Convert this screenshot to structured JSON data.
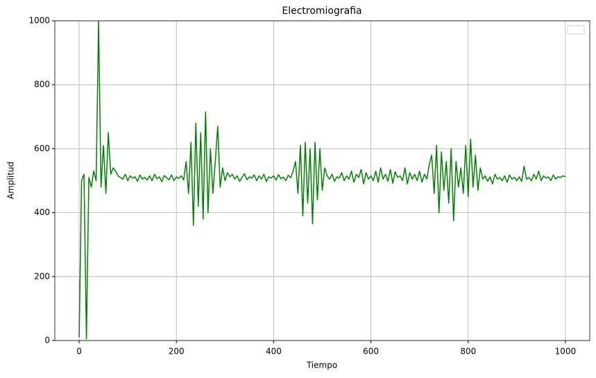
{
  "chart_data": {
    "type": "line",
    "title": "Electromiografia",
    "x_label": "Tiempo",
    "y_label": "Amplitud",
    "color": "#008000",
    "grid": true,
    "xlim": [
      -50,
      1050
    ],
    "ylim": [
      0,
      1000
    ],
    "xticks": [
      0,
      200,
      400,
      600,
      800,
      1000
    ],
    "yticks": [
      0,
      200,
      400,
      600,
      800,
      1000
    ],
    "x": [
      0,
      5,
      10,
      15,
      20,
      25,
      30,
      35,
      40,
      45,
      50,
      55,
      60,
      65,
      70,
      75,
      80,
      85,
      90,
      95,
      100,
      105,
      110,
      115,
      120,
      125,
      130,
      135,
      140,
      145,
      150,
      155,
      160,
      165,
      170,
      175,
      180,
      185,
      190,
      195,
      200,
      205,
      210,
      215,
      220,
      225,
      230,
      235,
      240,
      245,
      250,
      255,
      260,
      265,
      270,
      275,
      280,
      285,
      290,
      295,
      300,
      305,
      310,
      315,
      320,
      325,
      330,
      335,
      340,
      345,
      350,
      355,
      360,
      365,
      370,
      375,
      380,
      385,
      390,
      395,
      400,
      405,
      410,
      415,
      420,
      425,
      430,
      435,
      440,
      445,
      450,
      455,
      460,
      465,
      470,
      475,
      480,
      485,
      490,
      495,
      500,
      505,
      510,
      515,
      520,
      525,
      530,
      535,
      540,
      545,
      550,
      555,
      560,
      565,
      570,
      575,
      580,
      585,
      590,
      595,
      600,
      605,
      610,
      615,
      620,
      625,
      630,
      635,
      640,
      645,
      650,
      655,
      660,
      665,
      670,
      675,
      680,
      685,
      690,
      695,
      700,
      705,
      710,
      715,
      720,
      725,
      730,
      735,
      740,
      745,
      750,
      755,
      760,
      765,
      770,
      775,
      780,
      785,
      790,
      795,
      800,
      805,
      810,
      815,
      820,
      825,
      830,
      835,
      840,
      845,
      850,
      855,
      860,
      865,
      870,
      875,
      880,
      885,
      890,
      895,
      900,
      905,
      910,
      915,
      920,
      925,
      930,
      935,
      940,
      945,
      950,
      955,
      960,
      965,
      970,
      975,
      980,
      985,
      990,
      995,
      1000
    ],
    "values": [
      10,
      500,
      520,
      5,
      510,
      480,
      530,
      500,
      1000,
      480,
      610,
      460,
      650,
      520,
      540,
      530,
      515,
      510,
      505,
      520,
      500,
      515,
      508,
      512,
      498,
      518,
      505,
      510,
      502,
      515,
      500,
      520,
      506,
      512,
      497,
      516,
      509,
      503,
      518,
      500,
      512,
      507,
      515,
      502,
      560,
      460,
      620,
      360,
      680,
      420,
      650,
      380,
      715,
      400,
      600,
      460,
      560,
      670,
      480,
      540,
      500,
      525,
      512,
      520,
      505,
      515,
      498,
      510,
      522,
      503,
      512,
      508,
      518,
      500,
      515,
      505,
      520,
      497,
      512,
      508,
      515,
      502,
      519,
      506,
      511,
      500,
      517,
      509,
      530,
      560,
      460,
      610,
      390,
      620,
      430,
      600,
      365,
      620,
      440,
      600,
      470,
      540,
      515,
      505,
      520,
      498,
      512,
      508,
      525,
      500,
      515,
      505,
      530,
      495,
      520,
      510,
      535,
      490,
      525,
      505,
      515,
      500,
      530,
      495,
      540,
      505,
      520,
      498,
      535,
      492,
      528,
      510,
      515,
      500,
      540,
      490,
      525,
      505,
      520,
      500,
      530,
      495,
      520,
      505,
      550,
      580,
      460,
      610,
      400,
      590,
      470,
      560,
      430,
      600,
      375,
      560,
      480,
      540,
      460,
      610,
      450,
      630,
      480,
      580,
      470,
      540,
      505,
      515,
      498,
      512,
      490,
      520,
      505,
      510,
      500,
      515,
      495,
      518,
      505,
      510,
      500,
      512,
      498,
      545,
      505,
      510,
      500,
      520,
      505,
      530,
      500,
      515,
      508,
      512,
      500,
      518,
      505,
      512,
      510,
      515,
      512
    ]
  }
}
